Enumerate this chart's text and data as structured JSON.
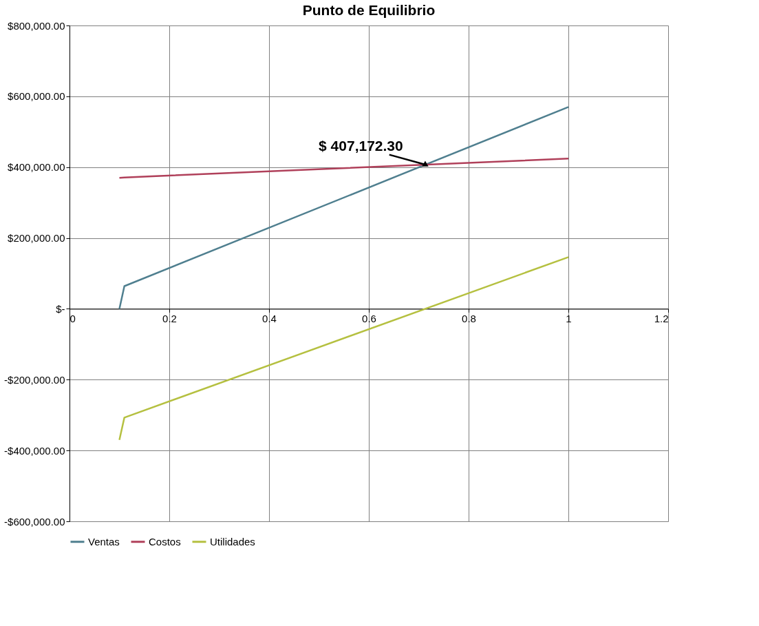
{
  "chart_data": {
    "type": "line",
    "title": "Punto de Equilibrio",
    "series": [
      {
        "name": "Ventas",
        "color": "#4f7f8f",
        "x": [
          0.1,
          0.11,
          1
        ],
        "values": [
          0,
          64000,
          570000
        ]
      },
      {
        "name": "Costos",
        "color": "#b0405a",
        "x": [
          0.1,
          0.11,
          1
        ],
        "values": [
          370000,
          371000,
          424000
        ]
      },
      {
        "name": "Utilidades",
        "color": "#b5c040",
        "x": [
          0.1,
          0.11,
          1
        ],
        "values": [
          -370000,
          -307000,
          146000
        ]
      }
    ],
    "xlim": [
      0,
      1.2
    ],
    "xticks": [
      0,
      0.2,
      0.4,
      0.6,
      0.8,
      1,
      1.2
    ],
    "ylim": [
      -600000,
      800000
    ],
    "yticks": [
      {
        "value": -600000,
        "label": "-$600,000.00"
      },
      {
        "value": -400000,
        "label": "-$400,000.00"
      },
      {
        "value": -200000,
        "label": "-$200,000.00"
      },
      {
        "value": 0,
        "label": "$-"
      },
      {
        "value": 200000,
        "label": "$200,000.00"
      },
      {
        "value": 400000,
        "label": "$400,000.00"
      },
      {
        "value": 600000,
        "label": "$600,000.00"
      },
      {
        "value": 800000,
        "label": "$800,000.00"
      }
    ],
    "annotations": [
      {
        "text": "$ 407,172.30",
        "x": 0.713,
        "y": 407172.3
      }
    ],
    "grid": true,
    "legend": "bottom",
    "marker": "none",
    "line_style": "solid"
  }
}
